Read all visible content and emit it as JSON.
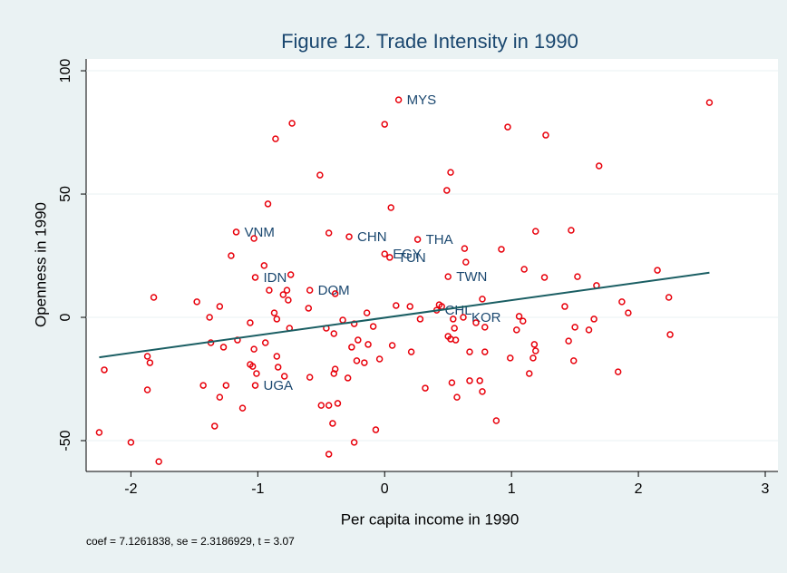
{
  "chart_data": {
    "type": "scatter",
    "title": "Figure 12. Trade Intensity in 1990",
    "xlabel": "Per capita income in 1990",
    "ylabel": "Openness in 1990",
    "note": "coef = 7.1261838, se = 2.3186929, t = 3.07",
    "xlim": [
      -2.353,
      3.1
    ],
    "ylim": [
      -62.5,
      104.8
    ],
    "xticks": [
      -2,
      -1,
      0,
      1,
      2,
      3
    ],
    "yticks": [
      -50,
      0,
      50,
      100
    ],
    "points": {
      "color": "#e8000b",
      "label_color": "#1a476f",
      "x": [
        -2.25,
        -2.21,
        -2.0,
        -1.78,
        -1.82,
        -1.87,
        -1.85,
        -1.87,
        -1.48,
        -1.43,
        -1.38,
        -1.37,
        -1.34,
        -1.3,
        -1.3,
        -1.27,
        -1.25,
        -1.21,
        -1.17,
        -1.16,
        -1.12,
        -1.06,
        -1.06,
        -1.04,
        -1.03,
        -1.03,
        -1.02,
        -1.02,
        -1.01,
        -0.95,
        -0.94,
        -0.92,
        -0.91,
        -0.87,
        -0.86,
        -0.85,
        -0.85,
        -0.84,
        -0.8,
        -0.79,
        -0.77,
        -0.76,
        -0.75,
        -0.74,
        -0.73,
        -0.59,
        -0.59,
        -0.6,
        -0.51,
        -0.5,
        -0.46,
        -0.44,
        -0.44,
        -0.44,
        -0.41,
        -0.4,
        -0.4,
        -0.39,
        -0.39,
        -0.37,
        -0.33,
        -0.29,
        -0.28,
        -0.26,
        -0.24,
        -0.24,
        -0.22,
        -0.21,
        -0.16,
        -0.14,
        -0.13,
        -0.09,
        -0.07,
        -0.04,
        0.0,
        0.0,
        0.04,
        0.05,
        0.06,
        0.09,
        0.11,
        0.2,
        0.21,
        0.26,
        0.28,
        0.32,
        0.41,
        0.43,
        0.45,
        0.49,
        0.5,
        0.5,
        0.52,
        0.52,
        0.53,
        0.54,
        0.55,
        0.56,
        0.57,
        0.62,
        0.63,
        0.64,
        0.67,
        0.67,
        0.72,
        0.75,
        0.77,
        0.77,
        0.79,
        0.79,
        0.88,
        0.92,
        0.97,
        0.99,
        1.04,
        1.06,
        1.09,
        1.1,
        1.14,
        1.17,
        1.18,
        1.19,
        1.19,
        1.26,
        1.27,
        1.42,
        1.45,
        1.47,
        1.49,
        1.5,
        1.52,
        1.61,
        1.65,
        1.67,
        1.69,
        1.84,
        1.87,
        1.92,
        2.15,
        2.24,
        2.25,
        2.56
      ],
      "values": [
        -46.7,
        -21.3,
        -50.7,
        -58.5,
        8.1,
        -15.8,
        -18.4,
        -29.4,
        6.3,
        -27.6,
        0,
        -10.3,
        -44.1,
        4.4,
        -32.4,
        -12.1,
        -27.6,
        25,
        34.6,
        -9.2,
        -36.8,
        -2.2,
        -19.1,
        -19.9,
        -12.9,
        32,
        16.2,
        -27.6,
        -22.8,
        21,
        -10.3,
        46,
        11,
        1.8,
        72.4,
        -0.7,
        -15.8,
        -20.2,
        9.2,
        -23.9,
        11,
        7,
        -4.4,
        17.3,
        78.7,
        11,
        -24.3,
        3.7,
        57.7,
        -35.7,
        -4.4,
        34.2,
        -35.7,
        -55.5,
        -43,
        -6.6,
        -22.8,
        -21,
        9.6,
        -34.9,
        -1.1,
        -24.6,
        32.7,
        -12.1,
        -2.6,
        -50.7,
        -17.6,
        -9.2,
        -18.4,
        1.8,
        -11,
        -3.7,
        -45.6,
        -16.9,
        78.3,
        25.7,
        24.3,
        44.5,
        -11.4,
        4.8,
        88.2,
        4.4,
        -14,
        31.6,
        -0.7,
        -28.7,
        2.9,
        5.1,
        4.4,
        51.5,
        -7.7,
        16.5,
        58.8,
        -8.8,
        -26.5,
        -0.7,
        -4.4,
        -9.2,
        -32.4,
        0,
        27.9,
        22.4,
        -25.7,
        -14,
        -2.2,
        -25.7,
        7.4,
        -30.1,
        -4,
        -14,
        -41.9,
        27.6,
        77.2,
        -16.5,
        -5.1,
        0.4,
        -1.5,
        19.5,
        -22.8,
        -16.5,
        -11,
        -13.6,
        34.9,
        16.2,
        73.9,
        4.4,
        -9.6,
        35.3,
        -17.6,
        -4,
        16.5,
        -5.1,
        -0.7,
        12.9,
        61.4,
        -22.1,
        6.3,
        1.8,
        19.1,
        8.1,
        -7,
        87.1
      ],
      "labels": [
        null,
        null,
        null,
        null,
        null,
        null,
        null,
        null,
        null,
        null,
        null,
        null,
        null,
        null,
        null,
        null,
        null,
        null,
        "VNM",
        null,
        null,
        null,
        null,
        null,
        null,
        null,
        "IDN",
        "UGA",
        null,
        null,
        null,
        null,
        null,
        null,
        null,
        null,
        null,
        null,
        null,
        null,
        null,
        null,
        null,
        null,
        null,
        "DOM",
        null,
        null,
        null,
        null,
        null,
        null,
        null,
        null,
        null,
        null,
        null,
        null,
        null,
        null,
        null,
        null,
        "CHN",
        null,
        null,
        null,
        null,
        null,
        null,
        null,
        null,
        null,
        null,
        null,
        null,
        "EGY",
        "TUN",
        null,
        null,
        null,
        "MYS",
        null,
        null,
        "THA",
        null,
        null,
        "CHL",
        null,
        null,
        null,
        null,
        "TWN",
        null,
        null,
        null,
        null,
        null,
        null,
        null,
        "KOR",
        null,
        null,
        null,
        null,
        null,
        null,
        null,
        null,
        null,
        null,
        null,
        null,
        null,
        null,
        null,
        null,
        null,
        null,
        null,
        null,
        null,
        null,
        null,
        null,
        null,
        null,
        null,
        null,
        null,
        null,
        null,
        null,
        null,
        null,
        null,
        null,
        null,
        null,
        null,
        null,
        null,
        null
      ]
    },
    "fit": {
      "color": "#1a5e63",
      "x": [
        -2.25,
        2.56
      ],
      "values": [
        -16.2,
        18.1
      ]
    }
  }
}
